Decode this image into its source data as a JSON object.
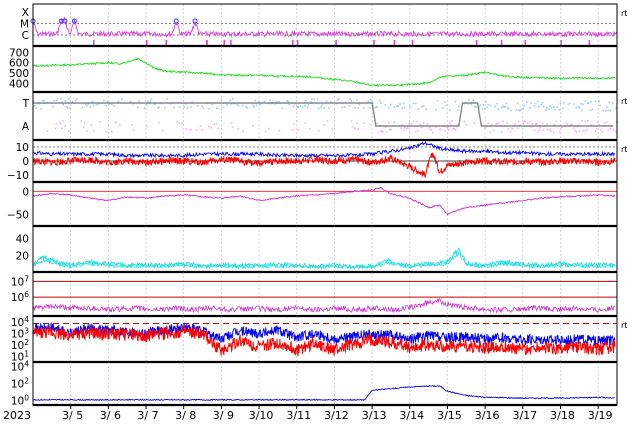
{
  "figure": {
    "year_label": "2023",
    "day_labels": [
      "3/ 5",
      "3/ 6",
      "3/ 7",
      "3/ 8",
      "3/ 9",
      "3/10",
      "3/11",
      "3/12",
      "3/13",
      "3/14",
      "3/15",
      "3/16",
      "3/17",
      "3/18",
      "3/19"
    ],
    "right_marks": [
      "rt",
      "rt",
      "rt",
      "rt"
    ]
  },
  "colors": {
    "magenta": "#e040e0",
    "green": "#22dd22",
    "lightblue": "#99ccff",
    "pink": "#ffaaff",
    "gray": "#888888",
    "blue": "#0000ee",
    "red": "#ff0000",
    "purple": "#cc33cc",
    "cyan": "#22dddd",
    "darkred": "#cc0000"
  },
  "chart_data": [
    {
      "type": "line",
      "panel": "xray-class",
      "ytick_labels": [
        "X",
        "M",
        "C"
      ],
      "series": [
        {
          "color": "magenta",
          "baseline": "near C",
          "flare_markers_at_day": [
            4.0,
            4.75,
            4.85,
            5.1,
            7.8,
            8.3
          ]
        }
      ]
    },
    {
      "type": "line",
      "panel": "solar-wind-speed",
      "ytick_labels": [
        "700",
        "600",
        "500",
        "400"
      ],
      "ylim": [
        320,
        760
      ],
      "x": [
        4.0,
        4.5,
        5.0,
        5.5,
        6.0,
        6.3,
        6.8,
        7.0,
        7.2,
        7.5,
        8.0,
        8.5,
        9.0,
        9.5,
        10.0,
        10.5,
        11.0,
        11.5,
        12.0,
        12.5,
        12.9,
        13.1,
        13.5,
        14.0,
        14.5,
        14.8,
        15.0,
        15.5,
        16.0,
        16.5,
        17.0,
        17.5,
        18.0,
        18.5,
        19.0,
        19.4
      ],
      "series": [
        {
          "color": "green",
          "values": [
            570,
            575,
            580,
            590,
            600,
            590,
            640,
            600,
            550,
            520,
            510,
            500,
            485,
            480,
            480,
            470,
            470,
            460,
            440,
            420,
            390,
            380,
            385,
            390,
            410,
            460,
            470,
            480,
            510,
            470,
            460,
            455,
            450,
            455,
            450,
            455
          ]
        }
      ]
    },
    {
      "type": "line",
      "panel": "magnetic-sector",
      "ytick_labels": [
        "T",
        "A"
      ],
      "series": [
        {
          "color": "gray",
          "label": "",
          "segments_days": [
            [
              4.0,
              13.0,
              "T"
            ],
            [
              13.0,
              13.1,
              "T-A"
            ],
            [
              13.1,
              15.3,
              "A"
            ],
            [
              15.3,
              15.4,
              "A-T"
            ],
            [
              15.4,
              15.8,
              "T"
            ],
            [
              15.8,
              15.9,
              "T-A"
            ],
            [
              15.9,
              19.4,
              "A"
            ]
          ]
        },
        {
          "color": "lightblue",
          "description": "dots near T"
        },
        {
          "color": "pink",
          "description": "dots near A"
        }
      ]
    },
    {
      "type": "line",
      "panel": "imf",
      "ytick_labels": [
        "0",
        "10",
        "−10"
      ],
      "ylim": [
        -15,
        15
      ],
      "x": [
        4.0,
        4.5,
        5.0,
        5.5,
        6.0,
        6.5,
        7.0,
        7.5,
        8.0,
        8.5,
        9.0,
        9.5,
        10.0,
        10.5,
        11.0,
        11.5,
        12.0,
        12.5,
        13.0,
        13.5,
        14.0,
        14.4,
        14.6,
        14.8,
        15.0,
        15.5,
        16.0,
        16.5,
        17.0,
        17.5,
        18.0,
        18.5,
        19.0,
        19.4
      ],
      "series": [
        {
          "color": "blue",
          "name": "",
          "values": [
            6,
            5,
            5,
            5,
            5,
            4,
            4,
            4,
            4,
            5,
            5,
            5,
            5,
            4,
            4,
            4,
            4,
            4,
            5,
            7,
            9,
            13,
            11,
            9,
            8,
            7,
            7,
            6,
            6,
            5,
            5,
            5,
            5,
            5
          ]
        },
        {
          "color": "red",
          "name": "",
          "values": [
            0,
            -1,
            0,
            1,
            -1,
            0,
            -1,
            0,
            0,
            -1,
            1,
            0,
            -2,
            0,
            0,
            1,
            0,
            1,
            -1,
            2,
            -4,
            -10,
            6,
            -8,
            -3,
            -1,
            0,
            -1,
            0,
            -1,
            0,
            0,
            -1,
            0
          ]
        }
      ]
    },
    {
      "type": "line",
      "panel": "dst",
      "ytick_labels": [
        "0",
        "−50"
      ],
      "ylim": [
        -75,
        20
      ],
      "x": [
        4.0,
        4.5,
        5.0,
        5.5,
        6.0,
        6.5,
        7.0,
        7.5,
        8.0,
        8.5,
        9.0,
        9.5,
        10.0,
        10.5,
        11.0,
        11.5,
        12.0,
        12.5,
        13.0,
        13.2,
        13.5,
        14.0,
        14.5,
        14.8,
        15.0,
        15.3,
        15.5,
        16.0,
        16.5,
        17.0,
        17.5,
        18.0,
        18.5,
        19.0,
        19.4
      ],
      "series": [
        {
          "color": "purple",
          "values": [
            -10,
            -5,
            -8,
            -15,
            -20,
            -12,
            -15,
            -10,
            -8,
            -12,
            -15,
            -10,
            -20,
            -15,
            -10,
            -8,
            -5,
            0,
            2,
            8,
            -5,
            -15,
            -35,
            -30,
            -50,
            -40,
            -35,
            -30,
            -25,
            -20,
            -15,
            -12,
            -10,
            -8,
            -10
          ]
        }
      ]
    },
    {
      "type": "line",
      "panel": "ae",
      "ytick_labels": [
        "40",
        "20"
      ],
      "ylim": [
        0,
        55
      ],
      "x": [
        4.0,
        4.3,
        4.6,
        5.0,
        5.5,
        6.0,
        6.5,
        7.0,
        7.5,
        8.0,
        8.5,
        9.0,
        9.5,
        10.0,
        10.5,
        11.0,
        11.5,
        12.0,
        12.5,
        13.0,
        13.4,
        13.8,
        14.0,
        14.5,
        15.0,
        15.3,
        15.5,
        16.0,
        16.5,
        17.0,
        17.5,
        18.0,
        18.5,
        19.0,
        19.4
      ],
      "series": [
        {
          "color": "cyan",
          "values": [
            10,
            18,
            12,
            8,
            12,
            10,
            8,
            9,
            8,
            10,
            8,
            9,
            7,
            8,
            9,
            8,
            7,
            8,
            7,
            7,
            14,
            9,
            8,
            10,
            12,
            28,
            10,
            8,
            12,
            9,
            8,
            10,
            9,
            8,
            9
          ]
        }
      ]
    },
    {
      "type": "line",
      "panel": "proton-flux",
      "ytick_labels": [
        "10^7",
        "10^6"
      ],
      "series": [
        {
          "color": "darkred",
          "name": "",
          "values_log10": [
            7,
            6
          ]
        },
        {
          "color": "purple",
          "values_log10": [
            5.3,
            5.4,
            5.3,
            5.3,
            5.2,
            5.3,
            5.2,
            5.3,
            5.2,
            5.3,
            5.2,
            5.3,
            5.2,
            5.3,
            5.2,
            5.3,
            5.2,
            5.3,
            5.2,
            5.4,
            5.8,
            5.4,
            5.3,
            5.2,
            5.2,
            5.3,
            5.2,
            5.3,
            5.2,
            5.3
          ]
        }
      ]
    },
    {
      "type": "line",
      "panel": "electron-flux",
      "ytick_labels": [
        "10^4",
        "10^3",
        "10^2",
        "10^1"
      ],
      "ylim_log10": [
        0.5,
        4.5
      ],
      "x": [
        4.0,
        4.5,
        5.0,
        5.5,
        6.0,
        6.5,
        7.0,
        7.5,
        8.0,
        8.5,
        9.0,
        9.5,
        10.0,
        10.5,
        11.0,
        11.5,
        12.0,
        12.5,
        13.0,
        13.5,
        14.0,
        14.5,
        15.0,
        15.5,
        16.0,
        16.5,
        17.0,
        17.5,
        18.0,
        18.5,
        19.0,
        19.4
      ],
      "series": [
        {
          "color": "blue",
          "values_log10": [
            3.4,
            3.5,
            3.0,
            3.4,
            3.3,
            3.2,
            3.0,
            3.3,
            3.5,
            3.2,
            2.5,
            3.2,
            3.0,
            3.3,
            2.6,
            3.0,
            2.5,
            2.7,
            2.9,
            2.8,
            2.5,
            2.8,
            2.6,
            2.7,
            2.5,
            2.6,
            2.4,
            2.5,
            2.4,
            2.5,
            2.3,
            2.4
          ]
        },
        {
          "color": "red",
          "values_log10": [
            3.0,
            3.1,
            2.8,
            3.0,
            2.9,
            2.9,
            2.8,
            3.0,
            3.1,
            2.9,
            1.5,
            2.4,
            1.8,
            2.2,
            1.5,
            2.2,
            1.5,
            2.0,
            2.4,
            2.2,
            1.8,
            2.0,
            1.8,
            1.9,
            1.7,
            1.9,
            1.6,
            1.8,
            1.6,
            1.8,
            1.6,
            1.8
          ]
        }
      ]
    },
    {
      "type": "line",
      "panel": "high-energy-electron",
      "ytick_labels": [
        "10^4",
        "10^2",
        "10^0"
      ],
      "ylim_log10": [
        -0.5,
        4.5
      ],
      "x": [
        4.0,
        5.0,
        6.0,
        7.0,
        8.0,
        9.0,
        10.0,
        11.0,
        12.0,
        12.8,
        13.0,
        13.5,
        14.0,
        14.5,
        14.8,
        15.0,
        15.5,
        16.0,
        17.0,
        18.0,
        19.0,
        19.4
      ],
      "series": [
        {
          "color": "blue",
          "values_log10": [
            0.1,
            0.1,
            0.1,
            0.1,
            0.1,
            0.1,
            0.1,
            0.1,
            0.1,
            0.1,
            1.2,
            1.4,
            1.6,
            1.7,
            1.7,
            1.1,
            0.6,
            0.4,
            0.3,
            0.3,
            0.4,
            0.3
          ]
        }
      ]
    }
  ]
}
